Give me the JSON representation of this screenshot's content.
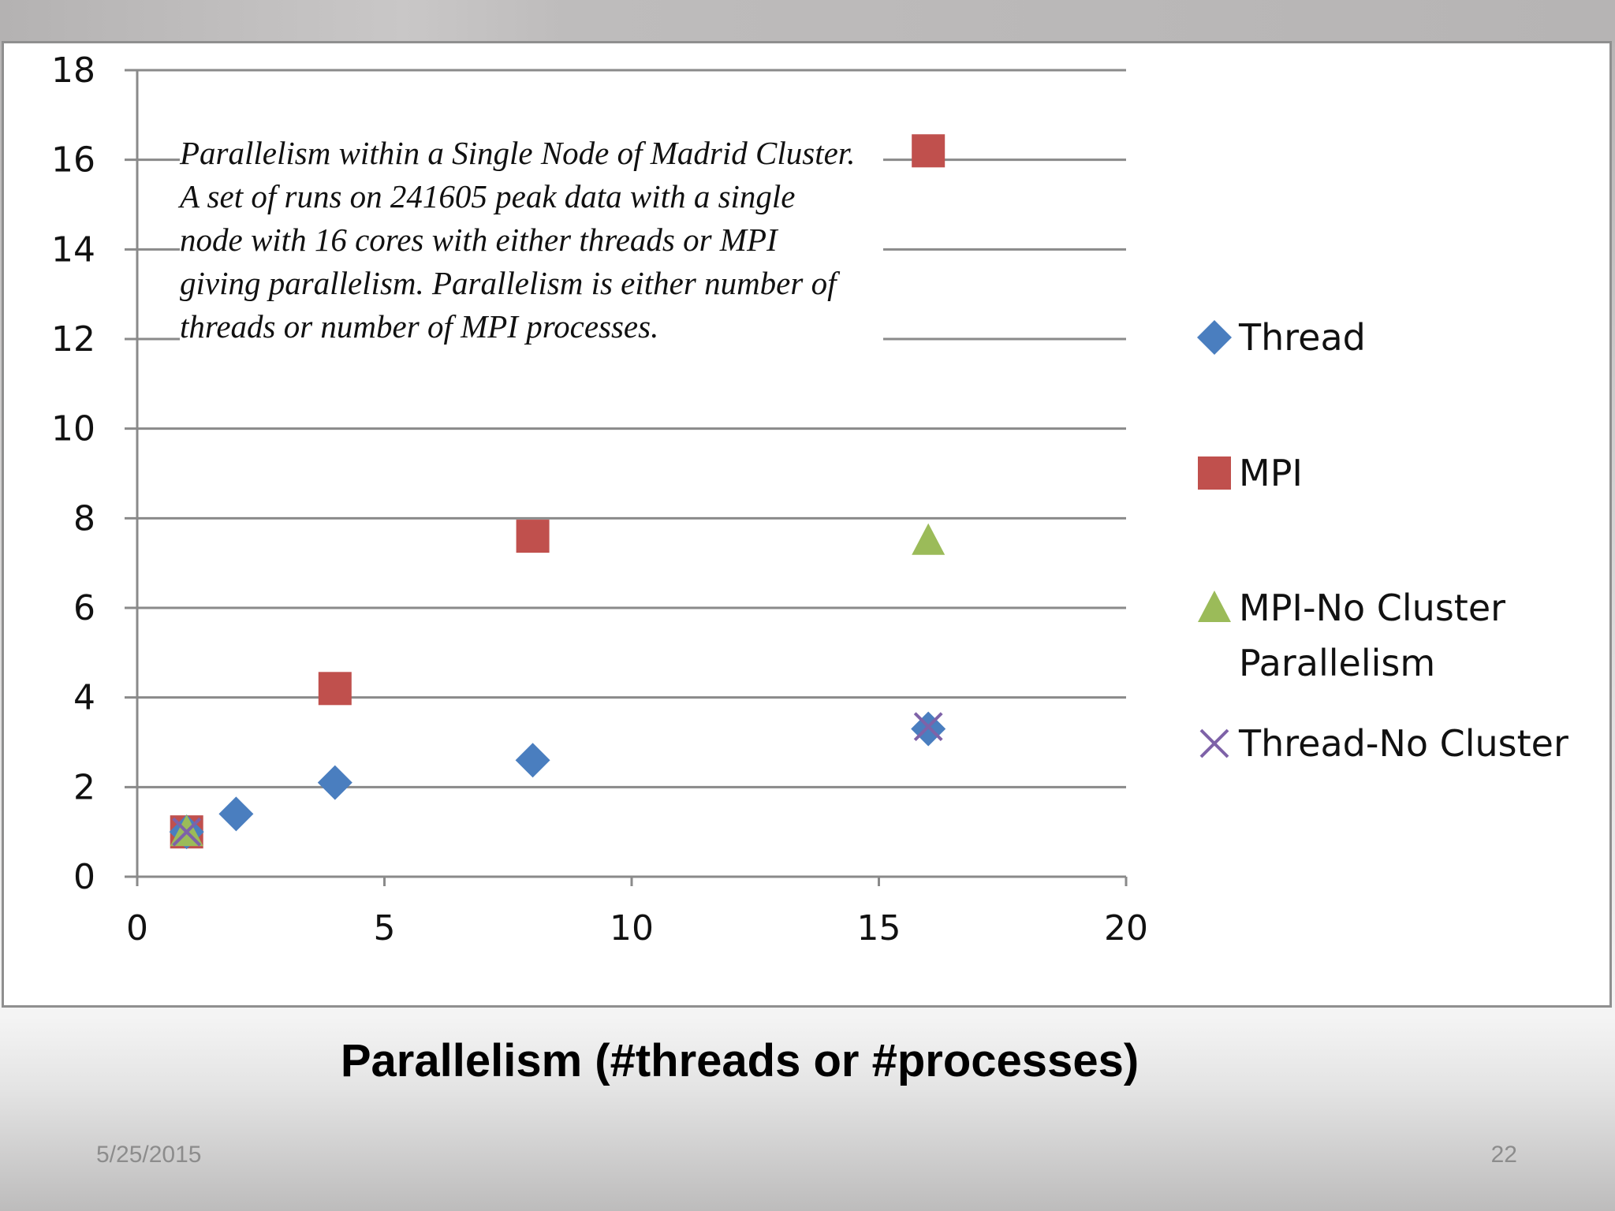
{
  "slide": {
    "date": "5/25/2015",
    "page_number": "22",
    "x_axis_label": "Parallelism (#threads or #processes)"
  },
  "chart_data": {
    "type": "scatter",
    "title": "Parallelism within a Single Node of Madrid Cluster. A set of runs on 241605 peak data with a single node with 16 cores with either threads or MPI giving parallelism. Parallelism is either number of threads or number of MPI processes.",
    "xlabel": "Parallelism (#threads or #processes)",
    "ylabel": "",
    "xlim": [
      0,
      20
    ],
    "ylim": [
      0,
      18
    ],
    "x_ticks": [
      0,
      5,
      10,
      15,
      20
    ],
    "y_ticks": [
      0,
      2,
      4,
      6,
      8,
      10,
      12,
      14,
      16,
      18
    ],
    "grid": "horizontal",
    "legend_position": "right",
    "series": [
      {
        "name": "Thread",
        "marker": "diamond",
        "color": "#4a7ebf",
        "x": [
          1,
          2,
          4,
          8,
          16
        ],
        "y": [
          1.0,
          1.4,
          2.1,
          2.6,
          3.3
        ]
      },
      {
        "name": "MPI",
        "marker": "square",
        "color": "#c0504d",
        "x": [
          1,
          4,
          8,
          16
        ],
        "y": [
          1.0,
          4.2,
          7.6,
          16.2
        ]
      },
      {
        "name": "MPI-No Cluster Parallelism",
        "marker": "triangle",
        "color": "#9bbb59",
        "x": [
          1,
          16
        ],
        "y": [
          1.0,
          7.5
        ]
      },
      {
        "name": "Thread-No Cluster",
        "marker": "x",
        "color": "#7e62a8",
        "x": [
          1,
          16
        ],
        "y": [
          1.0,
          3.35
        ]
      }
    ]
  }
}
